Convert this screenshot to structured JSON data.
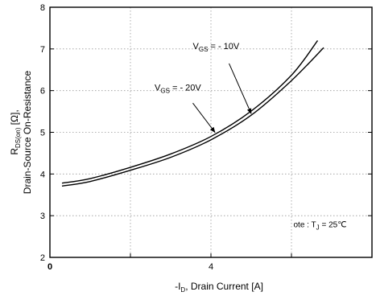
{
  "chart_data": {
    "type": "line",
    "xlabel": {
      "prefix": "-I",
      "sub": "D",
      "rest": ", Drain Current  [A]"
    },
    "ylabel": {
      "line1": {
        "prefix": "R",
        "sub": "DS(on)",
        "rest": "  [Ω],"
      },
      "line2": "Drain-Source On-Resistance"
    },
    "xlim": [
      0,
      8
    ],
    "ylim": [
      2,
      8
    ],
    "x_ticks": [
      0,
      4
    ],
    "x_tick_labels": [
      "0",
      "4"
    ],
    "y_ticks": [
      2,
      3,
      4,
      5,
      6,
      7,
      8
    ],
    "y_tick_labels": [
      "2",
      "3",
      "4",
      "5",
      "6",
      "7",
      "8"
    ],
    "grid": true,
    "series": [
      {
        "name": {
          "prefix": "V",
          "sub": "GS",
          "rest": " = - 10V"
        },
        "x": [
          0.3,
          1,
          2,
          3,
          4,
          5,
          6,
          6.8
        ],
        "y": [
          3.71,
          3.82,
          4.09,
          4.4,
          4.82,
          5.41,
          6.24,
          7.03
        ]
      },
      {
        "name": {
          "prefix": "V",
          "sub": "GS",
          "rest": " = - 20V"
        },
        "x": [
          0.3,
          1,
          2,
          3,
          4,
          5,
          6,
          6.65
        ],
        "y": [
          3.78,
          3.89,
          4.16,
          4.48,
          4.9,
          5.51,
          6.37,
          7.2
        ]
      }
    ],
    "annotations": [
      {
        "target_series": 0,
        "arrow_to_x": 5.0
      },
      {
        "target_series": 1,
        "arrow_to_x": 4.1
      }
    ],
    "note": {
      "prefix": "ote : T",
      "sub": "J",
      "rest": " = 25℃"
    }
  }
}
